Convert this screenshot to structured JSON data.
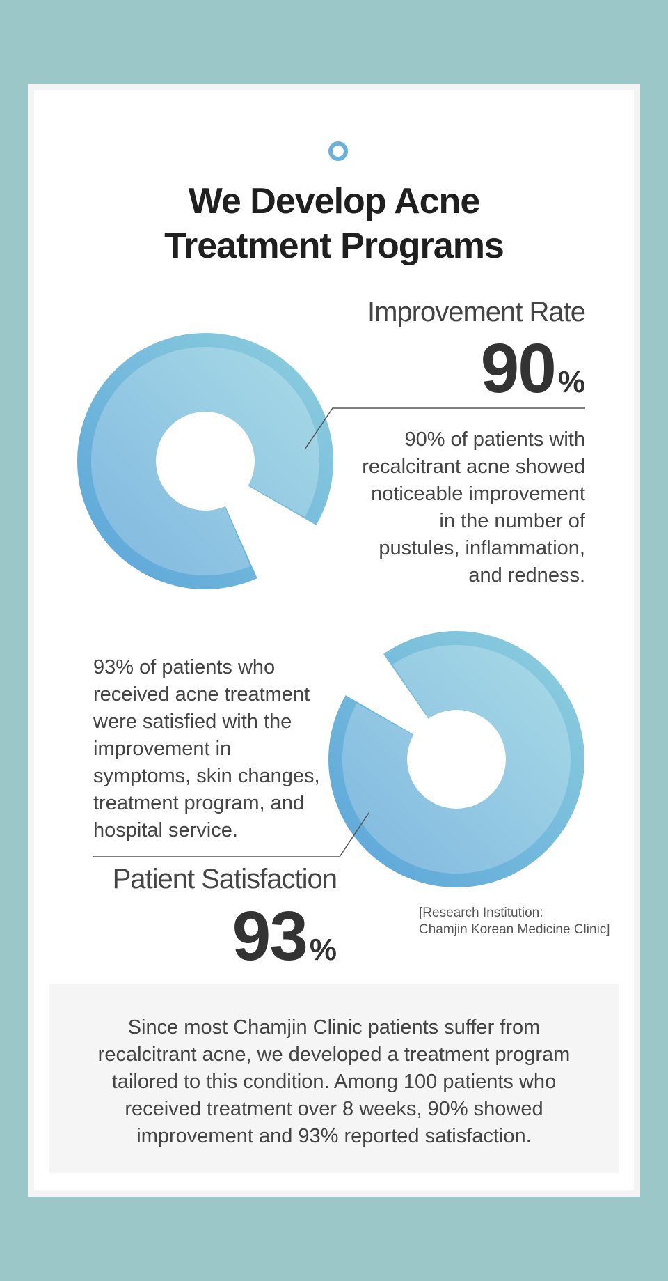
{
  "header": {
    "title_lines": [
      "We Develop Acne",
      "Treatment Programs"
    ]
  },
  "stats": [
    {
      "label": "Improvement Rate",
      "value": "90",
      "unit": "%",
      "description_lines": [
        "90% of patients with",
        "recalcitrant acne showed",
        "noticeable improvement",
        "in the number of",
        "pustules, inflammation,",
        "and redness."
      ]
    },
    {
      "label": "Patient Satisfaction",
      "value": "93",
      "unit": "%",
      "description_lines": [
        "93% of patients who",
        "received acne treatment",
        "were satisfied with the",
        "improvement in",
        "symptoms, skin changes,",
        "treatment program, and",
        "hospital service."
      ]
    }
  ],
  "source_lines": [
    "[Research Institution:",
    "Chamjin Korean Medicine Clinic]"
  ],
  "summary_lines": [
    "Since most Chamjin Clinic patients suffer from",
    "recalcitrant acne, we developed a treatment program",
    "tailored to this condition. Among 100 patients who",
    "received treatment over 8 weeks, 90% showed",
    "improvement and 93% reported satisfaction."
  ],
  "chart_data": [
    {
      "type": "pie",
      "categories": [
        "Improvement Rate",
        ""
      ],
      "values": [
        90,
        10
      ]
    },
    {
      "type": "pie",
      "categories": [
        "Patient Satisfaction",
        ""
      ],
      "values": [
        93,
        7
      ]
    }
  ],
  "colors": {
    "background": "#9bc7c9",
    "ring_outer_light": "#8fd0de",
    "ring_outer_dark": "#5aa4d9",
    "ring_inner_light": "#a8dbe6",
    "ring_inner_dark": "#80b8e0",
    "accent_icon": "#6db1d8",
    "leader_line": "#555555"
  }
}
